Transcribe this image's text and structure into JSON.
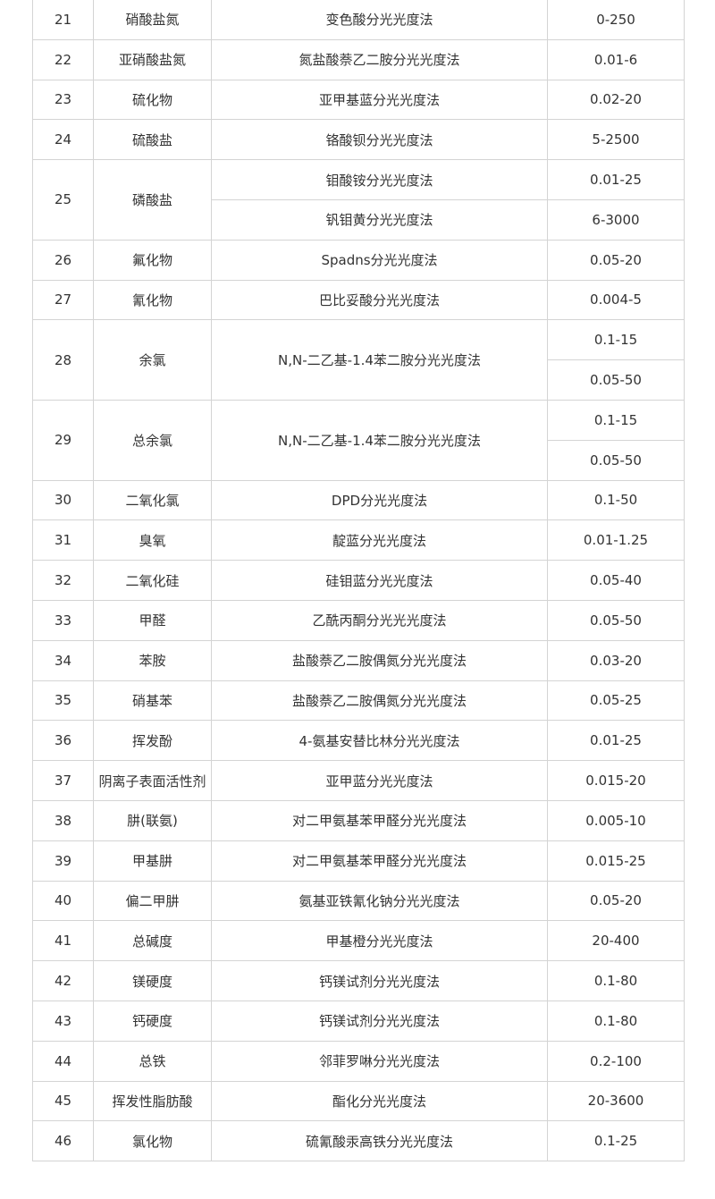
{
  "rows": [
    {
      "no": "21",
      "item": "硝酸盐氮",
      "methods": [
        {
          "method": "变色酸分光光度法",
          "range": "0-250"
        }
      ]
    },
    {
      "no": "22",
      "item": "亚硝酸盐氮",
      "methods": [
        {
          "method": "氮盐酸萘乙二胺分光光度法",
          "range": "0.01-6"
        }
      ]
    },
    {
      "no": "23",
      "item": "硫化物",
      "methods": [
        {
          "method": "亚甲基蓝分光光度法",
          "range": "0.02-20"
        }
      ]
    },
    {
      "no": "24",
      "item": "硫酸盐",
      "methods": [
        {
          "method": "铬酸钡分光光度法",
          "range": "5-2500"
        }
      ]
    },
    {
      "no": "25",
      "item": "磷酸盐",
      "methods": [
        {
          "method": "钼酸铵分光光度法",
          "range": "0.01-25"
        },
        {
          "method": "钒钼黄分光光度法",
          "range": "6-3000"
        }
      ]
    },
    {
      "no": "26",
      "item": "氟化物",
      "methods": [
        {
          "method": "Spadns分光光度法",
          "range": "0.05-20"
        }
      ]
    },
    {
      "no": "27",
      "item": "氰化物",
      "methods": [
        {
          "method": "巴比妥酸分光光度法",
          "range": "0.004-5"
        }
      ]
    },
    {
      "no": "28",
      "item": "余氯",
      "methods": [
        {
          "method": "N,N-二乙基-1.4苯二胺分光光度法",
          "range": "0.1-15"
        },
        {
          "method": "",
          "range": "0.05-50"
        }
      ]
    },
    {
      "no": "29",
      "item": "总余氯",
      "methods": [
        {
          "method": "N,N-二乙基-1.4苯二胺分光光度法",
          "range": "0.1-15"
        },
        {
          "method": "",
          "range": "0.05-50"
        }
      ]
    },
    {
      "no": "30",
      "item": "二氧化氯",
      "methods": [
        {
          "method": "DPD分光光度法",
          "range": "0.1-50"
        }
      ]
    },
    {
      "no": "31",
      "item": "臭氧",
      "methods": [
        {
          "method": "靛蓝分光光度法",
          "range": "0.01-1.25"
        }
      ]
    },
    {
      "no": "32",
      "item": "二氧化硅",
      "methods": [
        {
          "method": "硅钼蓝分光光度法",
          "range": "0.05-40"
        }
      ]
    },
    {
      "no": "33",
      "item": "甲醛",
      "methods": [
        {
          "method": "乙酰丙酮分光光光度法",
          "range": "0.05-50"
        }
      ]
    },
    {
      "no": "34",
      "item": "苯胺",
      "methods": [
        {
          "method": "盐酸萘乙二胺偶氮分光光度法",
          "range": "0.03-20"
        }
      ]
    },
    {
      "no": "35",
      "item": "硝基苯",
      "methods": [
        {
          "method": "盐酸萘乙二胺偶氮分光光度法",
          "range": "0.05-25"
        }
      ]
    },
    {
      "no": "36",
      "item": "挥发酚",
      "methods": [
        {
          "method": "4-氨基安替比林分光光度法",
          "range": "0.01-25"
        }
      ]
    },
    {
      "no": "37",
      "item": "阴离子表面活性剂",
      "methods": [
        {
          "method": "亚甲蓝分光光度法",
          "range": "0.015-20"
        }
      ]
    },
    {
      "no": "38",
      "item": "肼(联氨)",
      "methods": [
        {
          "method": "对二甲氨基苯甲醛分光光度法",
          "range": "0.005-10"
        }
      ]
    },
    {
      "no": "39",
      "item": "甲基肼",
      "methods": [
        {
          "method": "对二甲氨基苯甲醛分光光度法",
          "range": "0.015-25"
        }
      ]
    },
    {
      "no": "40",
      "item": "偏二甲肼",
      "methods": [
        {
          "method": "氨基亚铁氰化钠分光光度法",
          "range": "0.05-20"
        }
      ]
    },
    {
      "no": "41",
      "item": "总碱度",
      "methods": [
        {
          "method": "甲基橙分光光度法",
          "range": "20-400"
        }
      ]
    },
    {
      "no": "42",
      "item": "镁硬度",
      "methods": [
        {
          "method": "钙镁试剂分光光度法",
          "range": "0.1-80"
        }
      ]
    },
    {
      "no": "43",
      "item": "钙硬度",
      "methods": [
        {
          "method": "钙镁试剂分光光度法",
          "range": "0.1-80"
        }
      ]
    },
    {
      "no": "44",
      "item": "总铁",
      "methods": [
        {
          "method": "邻菲罗啉分光光度法",
          "range": "0.2-100"
        }
      ]
    },
    {
      "no": "45",
      "item": "挥发性脂肪酸",
      "methods": [
        {
          "method": "酯化分光光度法",
          "range": "20-3600"
        }
      ]
    },
    {
      "no": "46",
      "item": "氯化物",
      "methods": [
        {
          "method": "硫氰酸汞高铁分光光度法",
          "range": "0.1-25"
        }
      ]
    }
  ]
}
